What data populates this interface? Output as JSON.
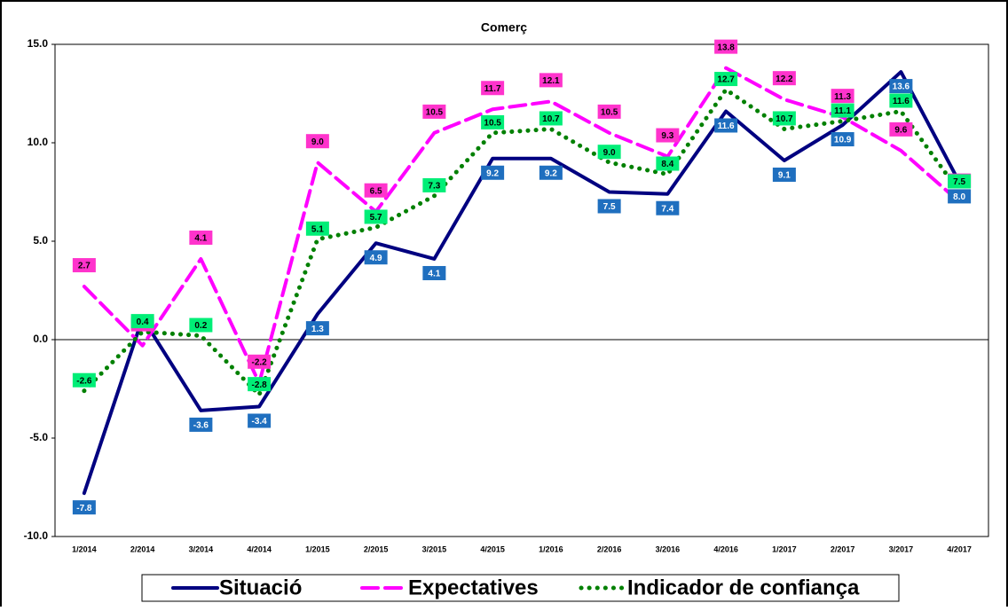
{
  "chart_data": {
    "type": "line",
    "title": "Comerç",
    "categories": [
      "1/2014",
      "2/2014",
      "3/2014",
      "4/2014",
      "1/2015",
      "2/2015",
      "3/2015",
      "4/2015",
      "1/2016",
      "2/2016",
      "3/2016",
      "4/2016",
      "1/2017",
      "2/2017",
      "3/2017",
      "4/2017"
    ],
    "ylim": [
      -10,
      15
    ],
    "yticks": [
      {
        "value": -10,
        "label": "-10.0"
      },
      {
        "value": -5,
        "label": "-5.0"
      },
      {
        "value": 0,
        "label": "0.0"
      },
      {
        "value": 5,
        "label": "5.0"
      },
      {
        "value": 10,
        "label": "10.0"
      },
      {
        "value": 15,
        "label": "15.0"
      }
    ],
    "series": [
      {
        "name": "Situació",
        "color": "#000080",
        "style": "solid",
        "label_color": "#1f6fbf",
        "values": [
          -7.8,
          1.1,
          -3.6,
          -3.4,
          1.3,
          4.9,
          4.1,
          9.2,
          9.2,
          7.5,
          7.4,
          11.6,
          9.1,
          10.9,
          13.6,
          8.0
        ],
        "value_labels": [
          "-7.8",
          null,
          "-3.6",
          "-3.4",
          "1.3",
          "4.9",
          "4.1",
          "9.2",
          "9.2",
          "7.5",
          "7.4",
          "11.6",
          "9.1",
          "10.9",
          "13.6",
          "8.0"
        ]
      },
      {
        "name": "Expectatives",
        "color": "#ff00ff",
        "style": "dashed",
        "label_color": "#ff33cc",
        "values": [
          2.7,
          -0.3,
          4.1,
          -2.2,
          9.0,
          6.5,
          10.5,
          11.7,
          12.1,
          10.5,
          9.3,
          13.8,
          12.2,
          11.3,
          9.6,
          7.0
        ],
        "value_labels": [
          "2.7",
          "-0.3",
          "4.1",
          "-2.2",
          "9.0",
          "6.5",
          "10.5",
          "11.7",
          "12.1",
          "10.5",
          "9.3",
          "13.8",
          "12.2",
          "11.3",
          "9.6",
          "7.0"
        ]
      },
      {
        "name": "Indicador de confiança",
        "color": "#008000",
        "style": "dotted",
        "label_color": "#00ee77",
        "values": [
          -2.6,
          0.4,
          0.2,
          -2.8,
          5.1,
          5.7,
          7.3,
          10.5,
          10.7,
          9.0,
          8.4,
          12.7,
          10.7,
          11.1,
          11.6,
          7.5
        ],
        "value_labels": [
          "-2.6",
          "0.4",
          "0.2",
          "-2.8",
          "5.1",
          "5.7",
          "7.3",
          "10.5",
          "10.7",
          "9.0",
          "8.4",
          "12.7",
          "10.7",
          "11.1",
          "11.6",
          "7.5"
        ]
      }
    ]
  }
}
